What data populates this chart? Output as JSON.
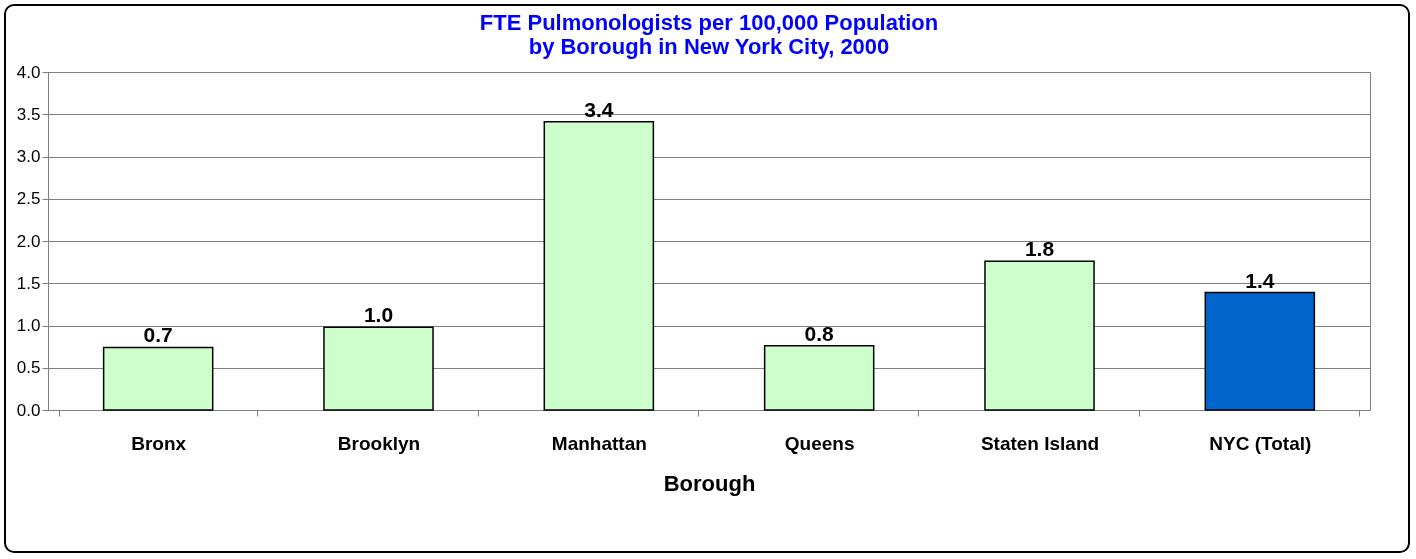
{
  "chart_data": {
    "type": "bar",
    "title": "FTE Pulmonologists per 100,000 Population\nby Borough in New York City, 2000",
    "xlabel": "Borough",
    "categories": [
      "Bronx",
      "Brooklyn",
      "Manhattan",
      "Queens",
      "Staten Island",
      "NYC (Total)"
    ],
    "values": [
      0.74,
      0.98,
      3.41,
      0.76,
      1.76,
      1.39
    ],
    "value_labels": [
      "0.7",
      "1.0",
      "3.4",
      "0.8",
      "1.8",
      "1.4"
    ],
    "colors": [
      "#ccffcc",
      "#ccffcc",
      "#ccffcc",
      "#ccffcc",
      "#ccffcc",
      "#0066cc"
    ],
    "ylim": [
      0,
      4
    ],
    "yticks": [
      {
        "value": 0,
        "label": "0.0"
      },
      {
        "value": 0.5,
        "label": "0.5"
      },
      {
        "value": 1,
        "label": "1.0"
      },
      {
        "value": 1.5,
        "label": "1.5"
      },
      {
        "value": 2,
        "label": "2.0"
      },
      {
        "value": 2.5,
        "label": "2.5"
      },
      {
        "value": 3,
        "label": "3.0"
      },
      {
        "value": 3.5,
        "label": "3.5"
      },
      {
        "value": 4,
        "label": "4.0"
      }
    ],
    "grid": "y",
    "legend": false
  }
}
